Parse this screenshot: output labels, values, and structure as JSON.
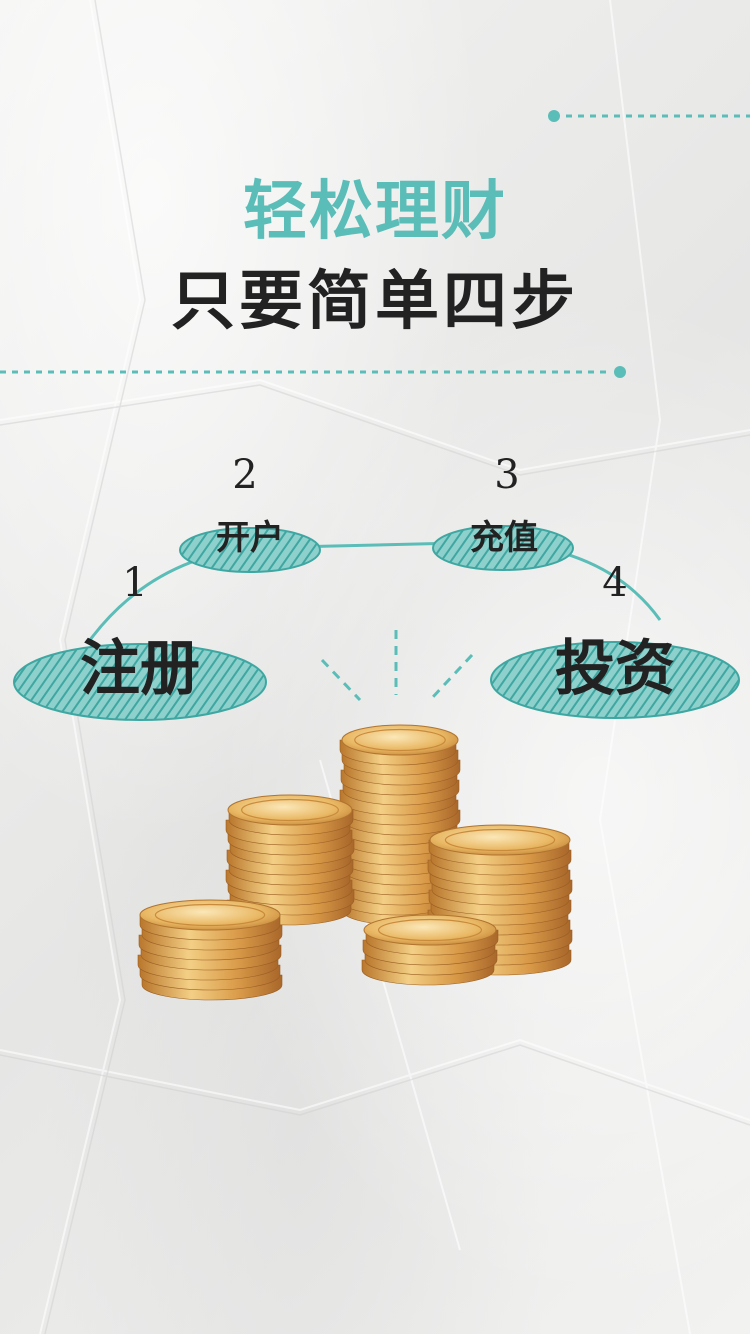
{
  "title": "轻松理财",
  "subtitle": "只要简单四步",
  "steps": [
    {
      "number": "1",
      "label": "注册"
    },
    {
      "number": "2",
      "label": "开户"
    },
    {
      "number": "3",
      "label": "充值"
    },
    {
      "number": "4",
      "label": "投资"
    }
  ],
  "colors": {
    "accent": "#5bbdb8",
    "text": "#222222",
    "gold": "#d9a24a"
  },
  "icons": [
    "coin-stack-illustration"
  ]
}
